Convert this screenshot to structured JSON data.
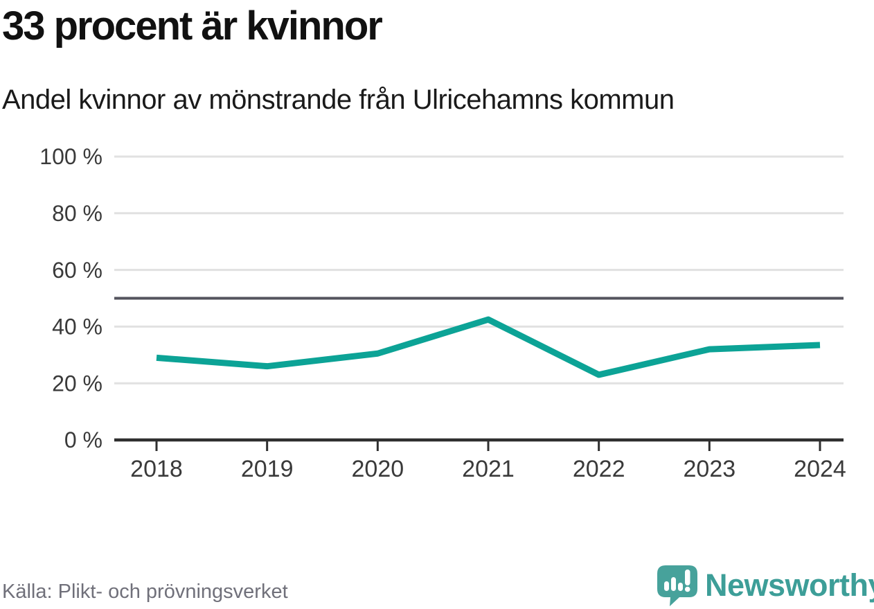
{
  "header": {
    "title": "33 procent är kvinnor",
    "subtitle": "Andel kvinnor av mönstrande från Ulricehamns kommun"
  },
  "chart_data": {
    "type": "line",
    "title": "33 procent är kvinnor",
    "subtitle": "Andel kvinnor av mönstrande från Ulricehamns kommun",
    "categories": [
      "2018",
      "2019",
      "2020",
      "2021",
      "2022",
      "2023",
      "2024"
    ],
    "series": [
      {
        "name": "Andel kvinnor av mönstrande",
        "values": [
          29,
          26,
          30.5,
          42.5,
          23,
          32,
          33.5
        ]
      }
    ],
    "unit": "%",
    "ylim": [
      0,
      100
    ],
    "y_ticks": [
      0,
      20,
      40,
      60,
      80,
      100
    ],
    "y_tick_labels": [
      "0 %",
      "20 %",
      "40 %",
      "60 %",
      "80 %",
      "100 %"
    ],
    "reference_line": {
      "value": 50
    },
    "grid": "horizontal gridlines on, legend off",
    "colors": {
      "line": "#0ca396",
      "gridline": "#e1e1e1",
      "reference_line": "#54545e",
      "axis": "#2f2f2f",
      "tick_label": "#3a3a3a"
    }
  },
  "footer": {
    "source": "Källa: Plikt- och prövningsverket",
    "brand": "Newsworthy",
    "brand_color": "#3d9e98",
    "brand_icon": "speech-bubble-with-bar-chart-and-exclamation"
  }
}
